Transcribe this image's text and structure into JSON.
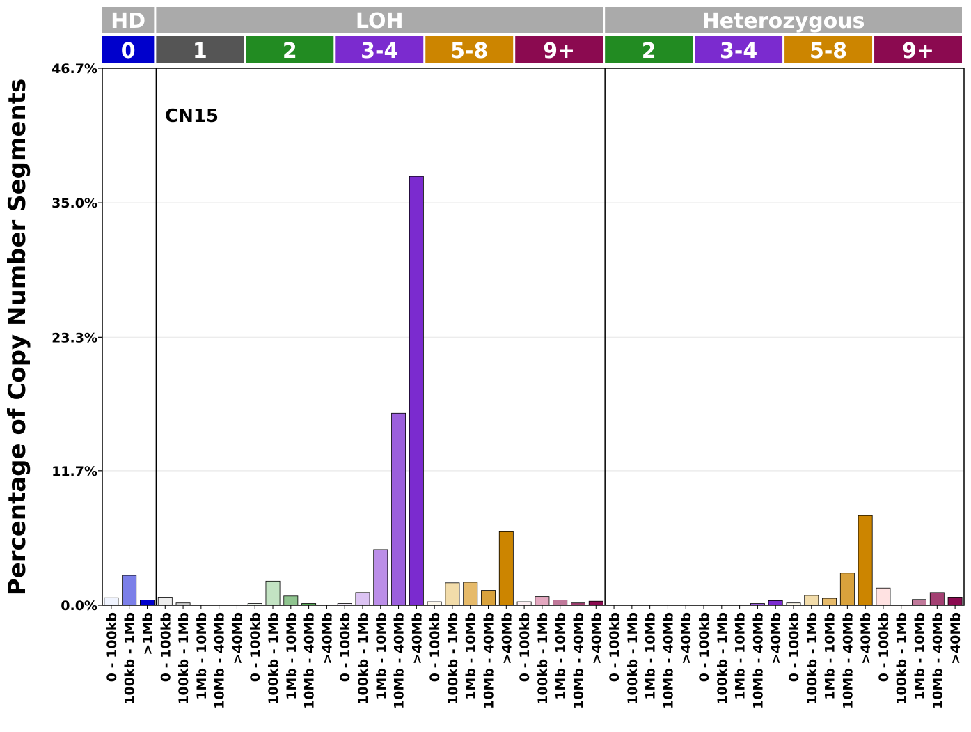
{
  "chart_data": {
    "type": "bar",
    "ylabel": "Percentage of Copy Number Segments",
    "annotation": "CN15",
    "ylim": [
      0,
      46.7
    ],
    "yticks": [
      "0.0%",
      "11.7%",
      "23.3%",
      "35.0%",
      "46.7%"
    ],
    "ytick_values": [
      0,
      11.7,
      23.3,
      35.0,
      46.7
    ],
    "grid": "horizontal",
    "top_groups": [
      {
        "label": "HD",
        "color": "#aaaaaa",
        "start": 0,
        "end": 2
      },
      {
        "label": "LOH",
        "color": "#aaaaaa",
        "start": 3,
        "end": 27
      },
      {
        "label": "Heterozygous",
        "color": "#aaaaaa",
        "start": 28,
        "end": 47
      }
    ],
    "sub_groups": [
      {
        "label": "0",
        "color": "#0000cc",
        "start": 0,
        "end": 2
      },
      {
        "label": "1",
        "color": "#555555",
        "start": 3,
        "end": 7
      },
      {
        "label": "2",
        "color": "#228b22",
        "start": 8,
        "end": 12
      },
      {
        "label": "3-4",
        "color": "#7b2bcf",
        "start": 13,
        "end": 17
      },
      {
        "label": "5-8",
        "color": "#cc8500",
        "start": 18,
        "end": 22
      },
      {
        "label": "9+",
        "color": "#8b0a50",
        "start": 23,
        "end": 27
      },
      {
        "label": "2",
        "color": "#228b22",
        "start": 28,
        "end": 32
      },
      {
        "label": "3-4",
        "color": "#7b2bcf",
        "start": 33,
        "end": 37
      },
      {
        "label": "5-8",
        "color": "#cc8500",
        "start": 38,
        "end": 42
      },
      {
        "label": "9+",
        "color": "#8b0a50",
        "start": 43,
        "end": 47
      }
    ],
    "categories": [
      "0 - 100kb",
      "100kb - 1Mb",
      ">1Mb",
      "0 - 100kb",
      "100kb - 1Mb",
      "1Mb - 10Mb",
      "10Mb - 40Mb",
      ">40Mb",
      "0 - 100kb",
      "100kb - 1Mb",
      "1Mb - 10Mb",
      "10Mb - 40Mb",
      ">40Mb",
      "0 - 100kb",
      "100kb - 1Mb",
      "1Mb - 10Mb",
      "10Mb - 40Mb",
      ">40Mb",
      "0 - 100kb",
      "100kb - 1Mb",
      "1Mb - 10Mb",
      "10Mb - 40Mb",
      ">40Mb",
      "0 - 100kb",
      "100kb - 1Mb",
      "1Mb - 10Mb",
      "10Mb - 40Mb",
      ">40Mb",
      "0 - 100kb",
      "100kb - 1Mb",
      "1Mb - 10Mb",
      "10Mb - 40Mb",
      ">40Mb",
      "0 - 100kb",
      "100kb - 1Mb",
      "1Mb - 10Mb",
      "10Mb - 40Mb",
      ">40Mb",
      "0 - 100kb",
      "100kb - 1Mb",
      "1Mb - 10Mb",
      "10Mb - 40Mb",
      ">40Mb",
      "0 - 100kb",
      "100kb - 1Mb",
      "1Mb - 10Mb",
      "10Mb - 40Mb",
      ">40Mb"
    ],
    "values": [
      0.65,
      2.6,
      0.45,
      0.7,
      0.2,
      0,
      0,
      0,
      0.15,
      2.1,
      0.8,
      0.15,
      0,
      0.15,
      1.1,
      4.85,
      16.7,
      37.3,
      0.3,
      1.95,
      2.0,
      1.3,
      6.4,
      0.3,
      0.75,
      0.45,
      0.2,
      0.35,
      0,
      0,
      0,
      0,
      0,
      0,
      0,
      0,
      0.15,
      0.4,
      0.2,
      0.85,
      0.6,
      2.8,
      7.8,
      1.5,
      0,
      0.5,
      1.1,
      0.7
    ],
    "bar_colors": [
      "#f0f4ff",
      "#7b7fe8",
      "#0000cc",
      "#eeeeee",
      "#cfcfcf",
      "#a8a8a8",
      "#7f7f7f",
      "#555555",
      "#eef7ee",
      "#c3e3c3",
      "#8fc48f",
      "#55a855",
      "#228b22",
      "#f3ecfb",
      "#dcc3f3",
      "#bb8ee8",
      "#9b5fdc",
      "#7b2bcf",
      "#fdf8ec",
      "#f2dcaa",
      "#e6ba6a",
      "#d9a23c",
      "#cc8500",
      "#fdeef2",
      "#e4a8c0",
      "#c0799a",
      "#a34072",
      "#8b0a50",
      "#eef7ee",
      "#c3e3c3",
      "#8fc48f",
      "#55a855",
      "#228b22",
      "#f3ecfb",
      "#dcc3f3",
      "#bb8ee8",
      "#9b5fdc",
      "#7b2bcf",
      "#fdf8ec",
      "#f2dcaa",
      "#e6ba6a",
      "#d9a23c",
      "#cc8500",
      "#ffe2e2",
      "#e4a8c0",
      "#c0799a",
      "#a34072",
      "#8b0a50"
    ],
    "separators_after_index": [
      2,
      27
    ]
  }
}
